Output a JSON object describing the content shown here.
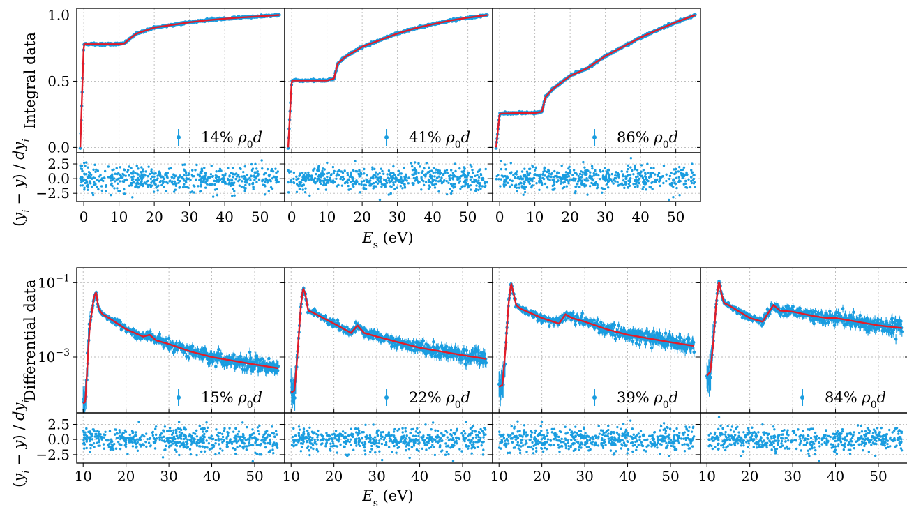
{
  "chart_data": [
    {
      "id": "integral",
      "type": "scatter",
      "ylabel": "Integral data",
      "resid_ylabel": "(y_i − y) / dy_i",
      "xlabel": "E_s (eV)",
      "xlim": [
        -2,
        57
      ],
      "ylim": [
        -0.04,
        1.05
      ],
      "yticks": [
        0.0,
        0.5,
        1.0
      ],
      "ytick_labels": [
        "0.0",
        "0.5",
        "1.0"
      ],
      "xticks": [
        0,
        10,
        20,
        30,
        40,
        50
      ],
      "xtick_labels": [
        "0",
        "10",
        "20",
        "30",
        "40",
        "50"
      ],
      "resid_ylim": [
        -3.9,
        4.4
      ],
      "resid_yticks": [
        -2.5,
        0.0,
        2.5
      ],
      "resid_ytick_labels": [
        "−2.5",
        "0.0",
        "2.5"
      ],
      "grid": true,
      "legend_placement": "bottom-right",
      "colors": {
        "data": "#1a9de0",
        "fit": "#e11d2a"
      },
      "panels": [
        {
          "legend": "14% ρ₀d",
          "points": [
            [
              -1,
              0
            ],
            [
              0,
              0.78
            ],
            [
              5,
              0.78
            ],
            [
              10,
              0.78
            ],
            [
              11.5,
              0.785
            ],
            [
              13,
              0.82
            ],
            [
              15,
              0.86
            ],
            [
              20,
              0.905
            ],
            [
              25,
              0.925
            ],
            [
              30,
              0.945
            ],
            [
              35,
              0.96
            ],
            [
              40,
              0.972
            ],
            [
              45,
              0.982
            ],
            [
              50,
              0.99
            ],
            [
              55.5,
              1.0
            ]
          ]
        },
        {
          "legend": "41% ρ₀d",
          "points": [
            [
              -1,
              0
            ],
            [
              0,
              0.505
            ],
            [
              5,
              0.505
            ],
            [
              10,
              0.505
            ],
            [
              12,
              0.52
            ],
            [
              13,
              0.63
            ],
            [
              15,
              0.68
            ],
            [
              20,
              0.76
            ],
            [
              25,
              0.81
            ],
            [
              30,
              0.86
            ],
            [
              35,
              0.9
            ],
            [
              40,
              0.93
            ],
            [
              45,
              0.958
            ],
            [
              50,
              0.98
            ],
            [
              55.5,
              1.0
            ]
          ]
        },
        {
          "legend": "86% ρ₀d",
          "points": [
            [
              -1,
              0
            ],
            [
              0,
              0.255
            ],
            [
              5,
              0.26
            ],
            [
              10,
              0.26
            ],
            [
              12,
              0.27
            ],
            [
              13,
              0.38
            ],
            [
              15,
              0.44
            ],
            [
              20,
              0.54
            ],
            [
              25,
              0.6
            ],
            [
              30,
              0.69
            ],
            [
              35,
              0.76
            ],
            [
              40,
              0.83
            ],
            [
              45,
              0.89
            ],
            [
              50,
              0.945
            ],
            [
              55.5,
              1.0
            ]
          ]
        }
      ]
    },
    {
      "id": "differential",
      "type": "scatter",
      "ylabel": "Differential data",
      "resid_ylabel": "(y_i − y) / dy_i",
      "xlabel": "E_s (eV)",
      "yscale": "log",
      "xlim": [
        8.5,
        57
      ],
      "ylim_log10": [
        -4.5,
        -0.6
      ],
      "yticks_log10": [
        -3,
        -1
      ],
      "ytick_labels": [
        "10⁻³",
        "10⁻¹"
      ],
      "xticks": [
        10,
        20,
        30,
        40,
        50
      ],
      "xtick_labels": [
        "10",
        "20",
        "30",
        "40",
        "50"
      ],
      "resid_ylim": [
        -3.9,
        4.4
      ],
      "resid_yticks": [
        -2.5,
        0.0,
        2.5
      ],
      "resid_ytick_labels": [
        "−2.5",
        "0.0",
        "2.5"
      ],
      "grid": true,
      "legend_placement": "bottom-right",
      "colors": {
        "data": "#1a9de0",
        "fit": "#e11d2a"
      },
      "panels": [
        {
          "legend": "15% ρ₀d",
          "points": [
            [
              10,
              -4.25
            ],
            [
              10.5,
              -4.2
            ],
            [
              11,
              -3.2
            ],
            [
              11.5,
              -2.2
            ],
            [
              12.5,
              -1.4
            ],
            [
              13,
              -1.25
            ],
            [
              13.6,
              -1.7
            ],
            [
              14.5,
              -1.85
            ],
            [
              16,
              -1.95
            ],
            [
              20,
              -2.25
            ],
            [
              24,
              -2.45
            ],
            [
              25.5,
              -2.4
            ],
            [
              27,
              -2.55
            ],
            [
              30,
              -2.65
            ],
            [
              35,
              -2.85
            ],
            [
              40,
              -3.0
            ],
            [
              45,
              -3.1
            ],
            [
              50,
              -3.2
            ],
            [
              55.5,
              -3.3
            ]
          ]
        },
        {
          "legend": "22% ρ₀d",
          "points": [
            [
              10,
              -3.95
            ],
            [
              10.8,
              -3.9
            ],
            [
              11.5,
              -2.9
            ],
            [
              12.3,
              -1.6
            ],
            [
              12.8,
              -1.15
            ],
            [
              13.3,
              -1.3
            ],
            [
              14,
              -1.75
            ],
            [
              15,
              -1.8
            ],
            [
              20,
              -2.1
            ],
            [
              24,
              -2.35
            ],
            [
              25.5,
              -2.15
            ],
            [
              27,
              -2.35
            ],
            [
              30,
              -2.45
            ],
            [
              35,
              -2.6
            ],
            [
              40,
              -2.75
            ],
            [
              45,
              -2.85
            ],
            [
              50,
              -2.95
            ],
            [
              55.5,
              -3.05
            ]
          ]
        },
        {
          "legend": "39% ρ₀d",
          "points": [
            [
              10,
              -3.8
            ],
            [
              10.8,
              -3.75
            ],
            [
              11.5,
              -2.8
            ],
            [
              12.2,
              -1.6
            ],
            [
              12.8,
              -1.0
            ],
            [
              13.4,
              -1.3
            ],
            [
              14,
              -1.6
            ],
            [
              15,
              -1.7
            ],
            [
              20,
              -1.95
            ],
            [
              24,
              -2.1
            ],
            [
              25.5,
              -1.85
            ],
            [
              27,
              -1.95
            ],
            [
              30,
              -2.05
            ],
            [
              35,
              -2.25
            ],
            [
              40,
              -2.4
            ],
            [
              45,
              -2.5
            ],
            [
              50,
              -2.6
            ],
            [
              55.5,
              -2.7
            ]
          ]
        },
        {
          "legend": "84% ρ₀d",
          "points": [
            [
              10,
              -3.5
            ],
            [
              10.8,
              -3.4
            ],
            [
              11.5,
              -2.6
            ],
            [
              12.2,
              -1.5
            ],
            [
              12.8,
              -0.95
            ],
            [
              13.4,
              -1.3
            ],
            [
              14,
              -1.55
            ],
            [
              15,
              -1.6
            ],
            [
              20,
              -1.95
            ],
            [
              23,
              -2.05
            ],
            [
              25.5,
              -1.6
            ],
            [
              27,
              -1.75
            ],
            [
              30,
              -1.78
            ],
            [
              35,
              -1.9
            ],
            [
              38,
              -1.95
            ],
            [
              40,
              -1.95
            ],
            [
              45,
              -2.05
            ],
            [
              50,
              -2.15
            ],
            [
              55.5,
              -2.22
            ]
          ]
        }
      ]
    }
  ]
}
